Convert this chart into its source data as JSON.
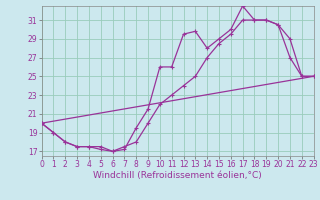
{
  "xlabel": "Windchill (Refroidissement éolien,°C)",
  "bg_color": "#cce8ee",
  "grid_color": "#99ccbb",
  "line_color": "#993399",
  "series1": {
    "points": [
      [
        0,
        20
      ],
      [
        1,
        19
      ],
      [
        2,
        18
      ],
      [
        3,
        17.5
      ],
      [
        4,
        17.5
      ],
      [
        5,
        17.2
      ],
      [
        6,
        17
      ],
      [
        7,
        17.2
      ],
      [
        8,
        19.5
      ],
      [
        9,
        21.5
      ],
      [
        10,
        26
      ],
      [
        11,
        26
      ],
      [
        12,
        29.5
      ],
      [
        13,
        29.8
      ],
      [
        14,
        28
      ],
      [
        15,
        29
      ],
      [
        16,
        30
      ],
      [
        17,
        32.5
      ],
      [
        18,
        31
      ],
      [
        19,
        31
      ],
      [
        20,
        30.5
      ],
      [
        21,
        27
      ],
      [
        22,
        25
      ],
      [
        23,
        25
      ]
    ]
  },
  "series2": {
    "points": [
      [
        0,
        20
      ],
      [
        1,
        19
      ],
      [
        2,
        18
      ],
      [
        3,
        17.5
      ],
      [
        4,
        17.5
      ],
      [
        5,
        17.5
      ],
      [
        6,
        17
      ],
      [
        7,
        17.5
      ],
      [
        8,
        18
      ],
      [
        9,
        20
      ],
      [
        10,
        22
      ],
      [
        11,
        23
      ],
      [
        12,
        24
      ],
      [
        13,
        25
      ],
      [
        14,
        27
      ],
      [
        15,
        28.5
      ],
      [
        16,
        29.5
      ],
      [
        17,
        31
      ],
      [
        18,
        31
      ],
      [
        19,
        31
      ],
      [
        20,
        30.5
      ],
      [
        21,
        29
      ],
      [
        22,
        25
      ],
      [
        23,
        25
      ]
    ]
  },
  "series3": {
    "points": [
      [
        0,
        20
      ],
      [
        23,
        25
      ]
    ]
  },
  "xlim": [
    0,
    23
  ],
  "ylim": [
    16.5,
    32.5
  ],
  "xticks": [
    0,
    1,
    2,
    3,
    4,
    5,
    6,
    7,
    8,
    9,
    10,
    11,
    12,
    13,
    14,
    15,
    16,
    17,
    18,
    19,
    20,
    21,
    22,
    23
  ],
  "yticks": [
    17,
    19,
    21,
    23,
    25,
    27,
    29,
    31
  ],
  "tick_fontsize": 5.5,
  "xlabel_fontsize": 6.5,
  "marker_size": 2.5,
  "line_width": 0.9
}
